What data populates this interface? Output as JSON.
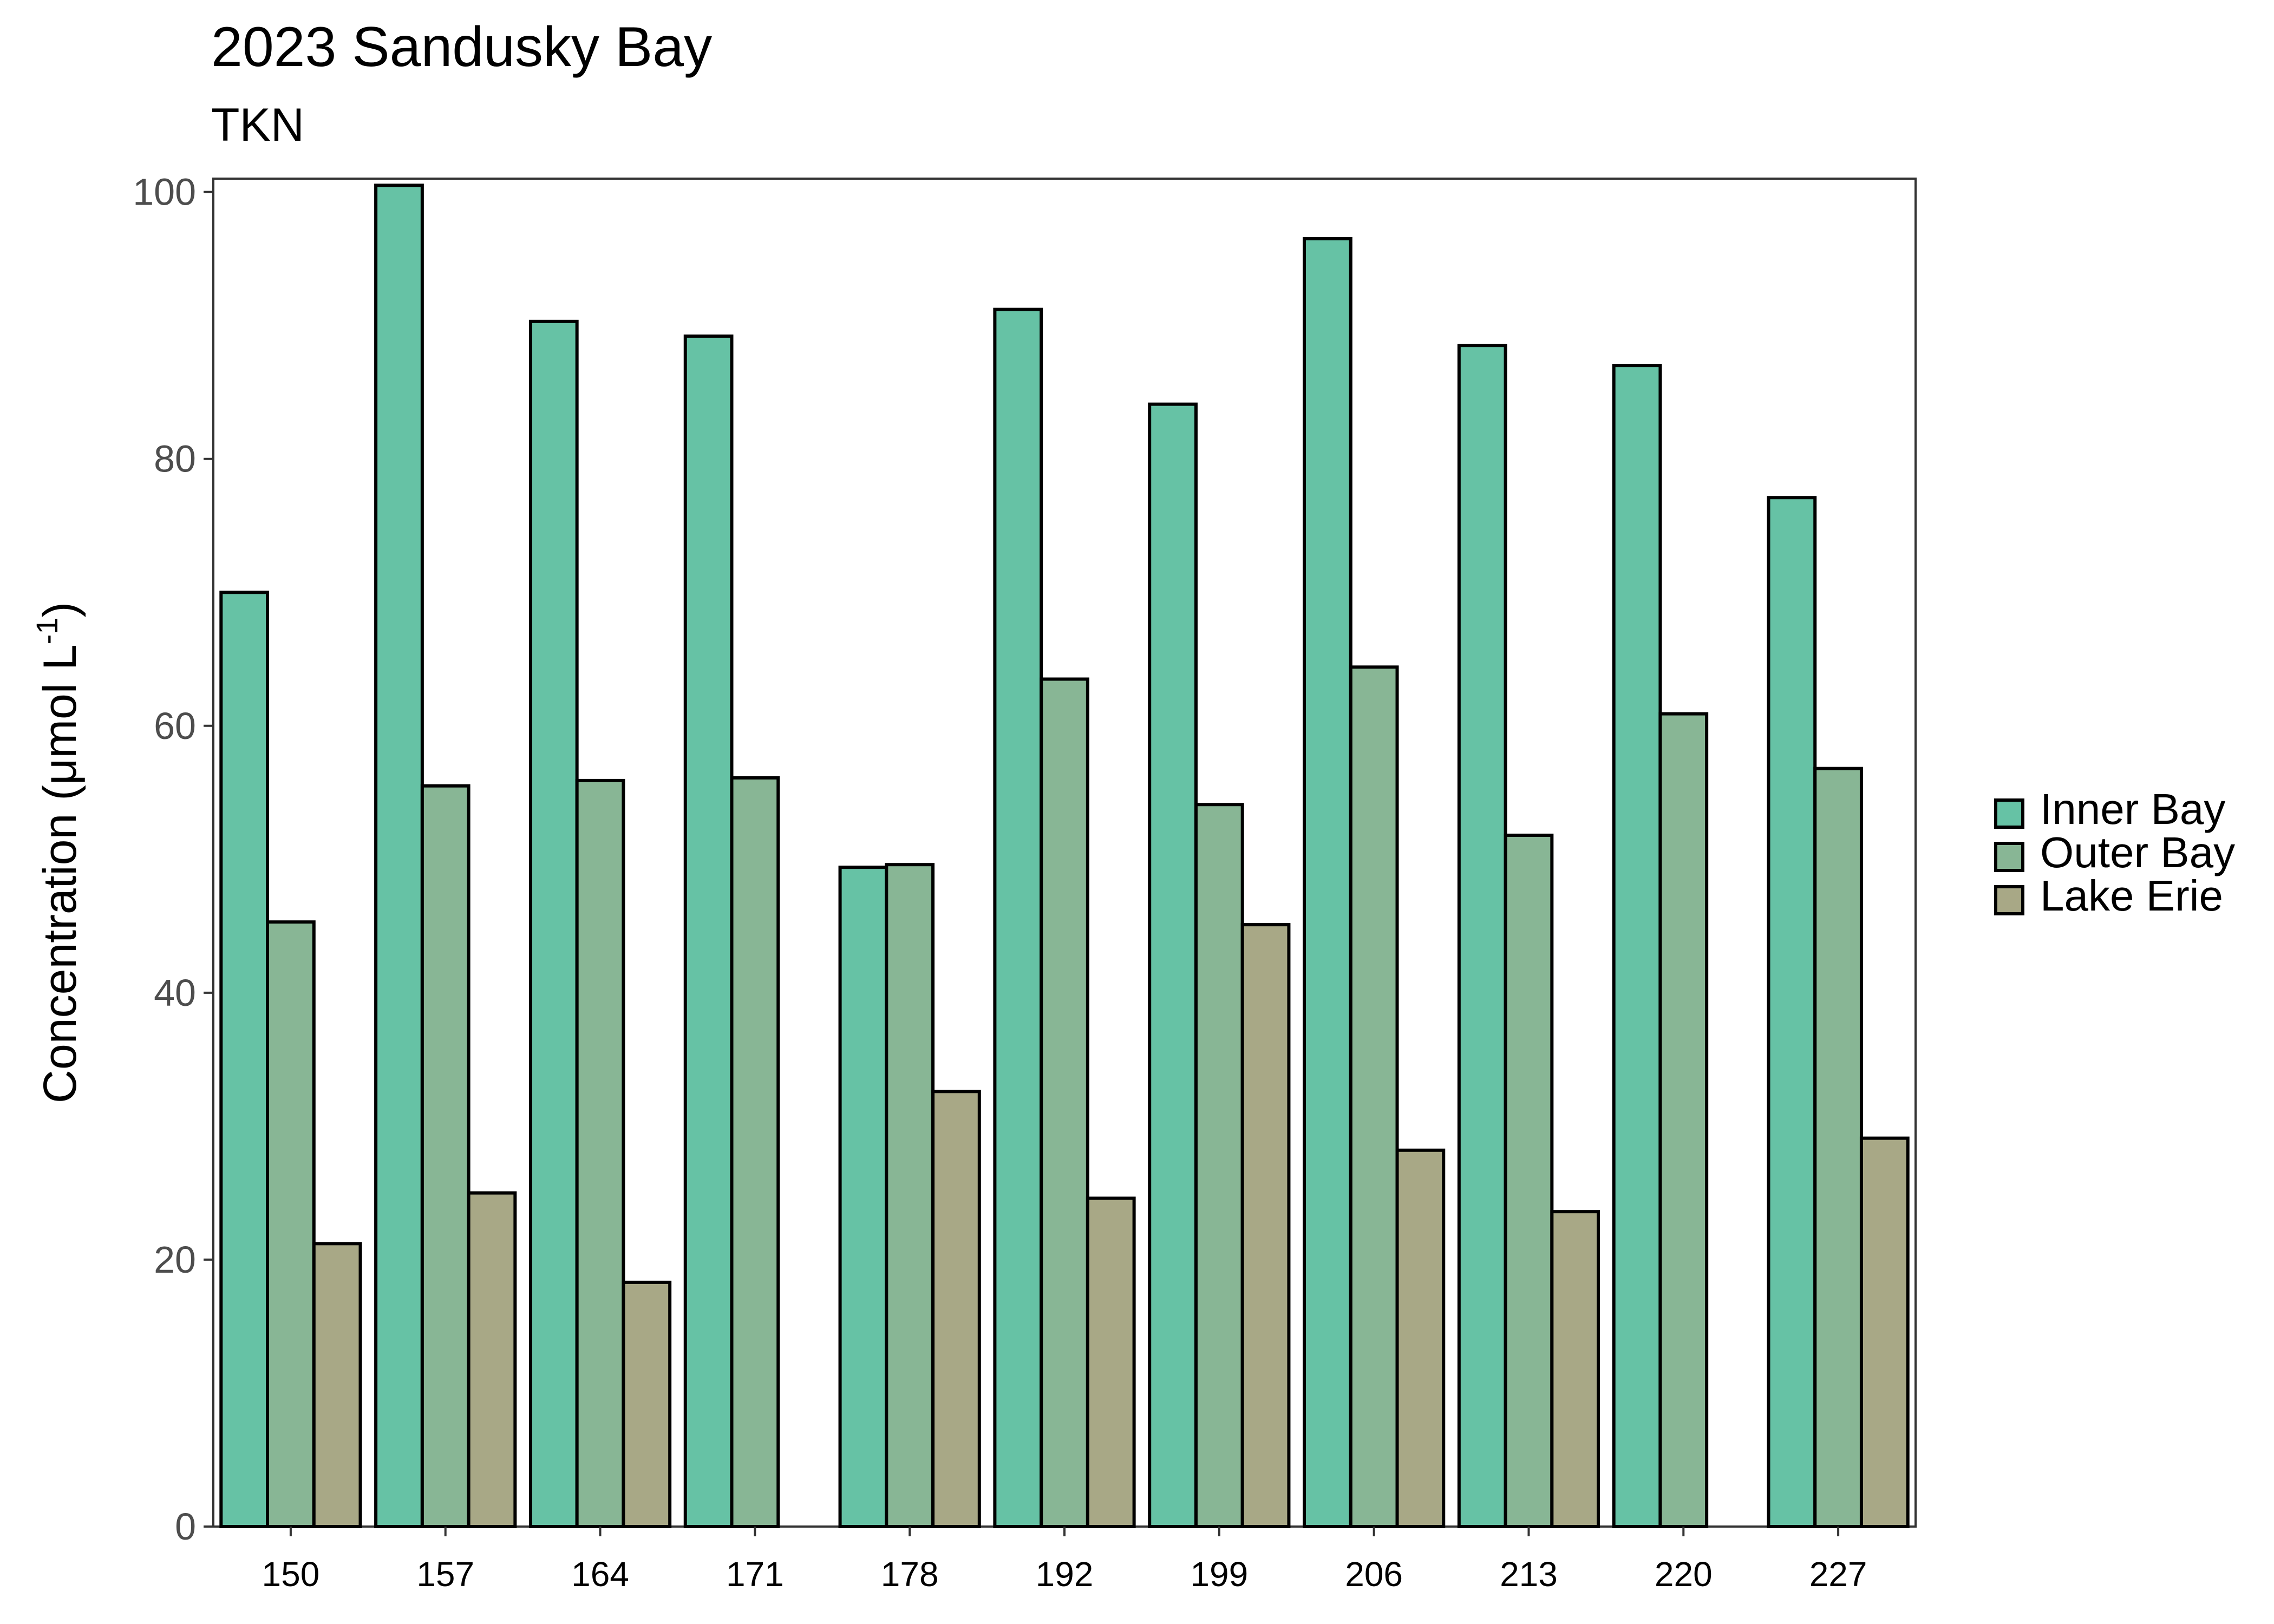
{
  "chart_data": {
    "type": "bar",
    "title": "2023 Sandusky Bay",
    "subtitle": "TKN",
    "xlabel": "",
    "ylabel_main": "Concentration (μmol L",
    "ylabel_sup": "-1",
    "ylabel_close": ")",
    "ylim": [
      0,
      101
    ],
    "yticks": [
      0,
      20,
      40,
      60,
      80,
      100
    ],
    "categories": [
      "150",
      "157",
      "164",
      "171",
      "178",
      "192",
      "199",
      "206",
      "213",
      "220",
      "227"
    ],
    "series": [
      {
        "name": "Inner Bay",
        "color": "#66c2a5",
        "values": [
          70,
          100.5,
          90.3,
          89.2,
          49.4,
          91.2,
          84.1,
          96.5,
          88.5,
          87,
          77.1
        ]
      },
      {
        "name": "Outer Bay",
        "color": "#88b695",
        "values": [
          45.3,
          55.5,
          55.9,
          56.1,
          49.6,
          63.5,
          54.1,
          64.4,
          51.8,
          60.9,
          56.8
        ]
      },
      {
        "name": "Lake Erie",
        "color": "#a8a886",
        "values": [
          21.2,
          25,
          18.3,
          null,
          32.6,
          24.6,
          45.1,
          28.2,
          23.6,
          null,
          29.1
        ]
      }
    ],
    "grid": false,
    "legend_position": "right"
  }
}
